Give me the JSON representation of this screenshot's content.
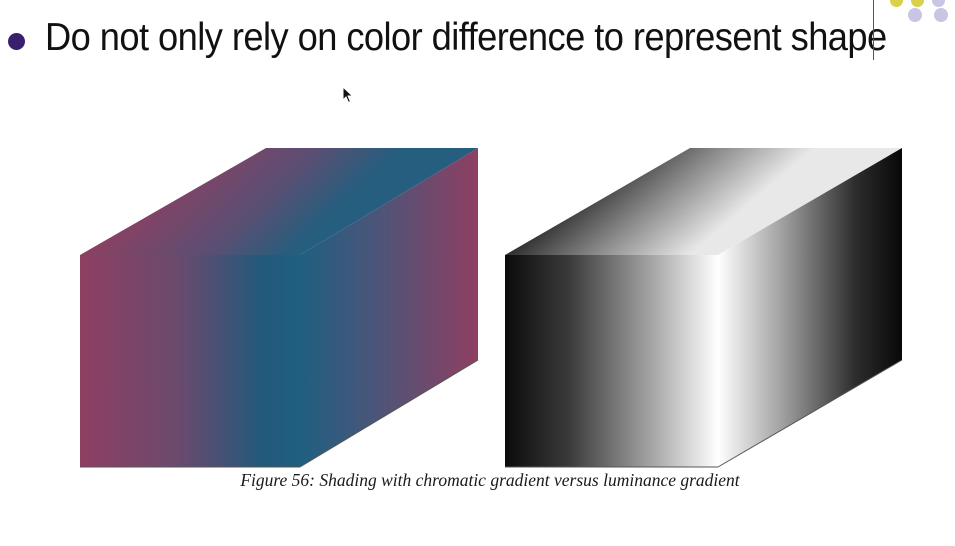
{
  "slide": {
    "bullet_text": "Do not only rely on color difference to represent shape",
    "caption": "Figure 56: Shading with chromatic gradient versus luminance gradient"
  },
  "colors": {
    "bullet": "#3a1f6e",
    "deco_yellow": "#d8d24a",
    "deco_lavender": "#c9c6e3",
    "chroma_magenta": "#8e3f62",
    "chroma_teal": "#1f5f80",
    "lum_black": "#0a0a0a",
    "lum_white": "#ffffff"
  },
  "icons": {
    "cursor": "mouse-pointer-icon"
  }
}
